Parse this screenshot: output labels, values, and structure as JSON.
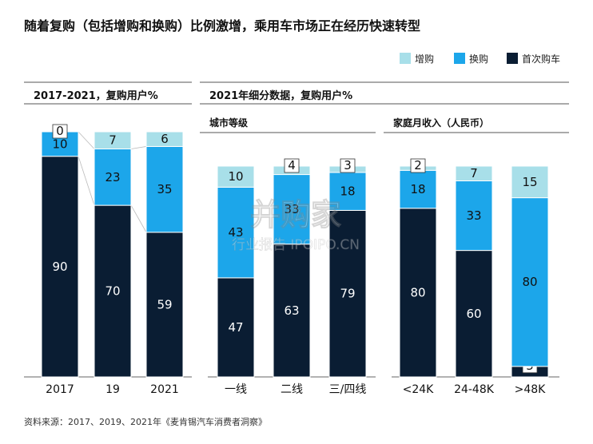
{
  "title": "随着复购（包括增购和换购）比例激增，乘用车市场正在经历快速转型",
  "legend": [
    {
      "label": "增购",
      "color": "#a8dfe9"
    },
    {
      "label": "换购",
      "color": "#1ca6ea"
    },
    {
      "label": "首次购车",
      "color": "#0a1d33"
    }
  ],
  "sections": {
    "left": "2017-2021，复购用户%",
    "right": "2021年细分数据，复购用户%",
    "city": "城市等级",
    "income": "家庭月收入（人民币）"
  },
  "watermark": {
    "brand": "并购家",
    "sub": "行业报告 IPOIPO.CN"
  },
  "source": "资料来源：2017、2019、2021年《麦肯锡汽车消费者洞察》",
  "chart_data": [
    {
      "type": "bar",
      "stacked": true,
      "title": "2017-2021，复购用户%",
      "categories": [
        "2017",
        "19",
        "2021"
      ],
      "series": [
        {
          "name": "首次购车",
          "values": [
            90,
            70,
            59
          ]
        },
        {
          "name": "换购",
          "values": [
            10,
            23,
            35
          ]
        },
        {
          "name": "增购",
          "values": [
            0,
            7,
            6
          ]
        }
      ],
      "ylim": [
        0,
        100
      ]
    },
    {
      "type": "bar",
      "stacked": true,
      "title": "城市等级",
      "categories": [
        "一线",
        "二线",
        "三/四线"
      ],
      "series": [
        {
          "name": "首次购车",
          "values": [
            47,
            63,
            79
          ]
        },
        {
          "name": "换购",
          "values": [
            43,
            33,
            18
          ]
        },
        {
          "name": "增购",
          "values": [
            10,
            4,
            3
          ]
        }
      ],
      "ylim": [
        0,
        100
      ]
    },
    {
      "type": "bar",
      "stacked": true,
      "title": "家庭月收入（人民币）",
      "categories": [
        "<24K",
        "24-48K",
        ">48K"
      ],
      "series": [
        {
          "name": "首次购车",
          "values": [
            80,
            60,
            5
          ]
        },
        {
          "name": "换购",
          "values": [
            18,
            33,
            80
          ]
        },
        {
          "name": "增购",
          "values": [
            2,
            7,
            15
          ]
        }
      ],
      "ylim": [
        0,
        100
      ]
    }
  ]
}
